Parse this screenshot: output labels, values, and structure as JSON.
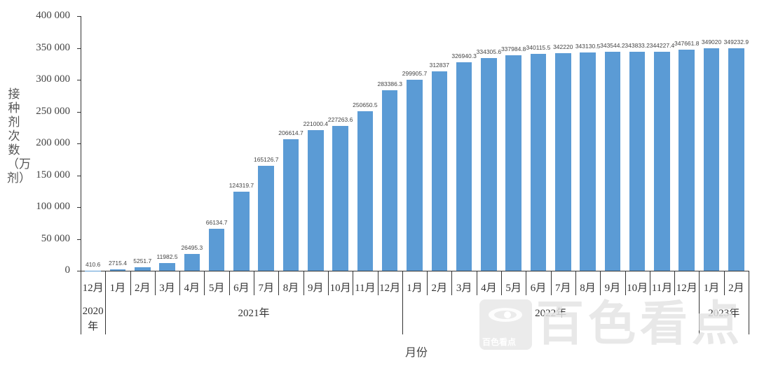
{
  "chart_data": {
    "type": "bar",
    "title": "",
    "xlabel": "月份",
    "ylabel": "接种剂次数（万剂）",
    "ylim": [
      0,
      400000
    ],
    "yticks": [
      "400 000",
      "350 000",
      "300 000",
      "250 000",
      "200 000",
      "150 000",
      "100 000",
      "50 000",
      "0"
    ],
    "ytick_values": [
      400000,
      350000,
      300000,
      250000,
      200000,
      150000,
      100000,
      50000,
      0
    ],
    "grid": false,
    "legend": null,
    "bar_color": "#5b9bd5",
    "categories": [
      "12月",
      "1月",
      "2月",
      "3月",
      "4月",
      "5月",
      "6月",
      "7月",
      "8月",
      "9月",
      "10月",
      "11月",
      "12月",
      "1月",
      "2月",
      "3月",
      "4月",
      "5月",
      "6月",
      "7月",
      "8月",
      "9月",
      "10月",
      "11月",
      "12月",
      "1月",
      "2月"
    ],
    "values": [
      410.6,
      2715.4,
      5251.7,
      11982.5,
      26495.3,
      66134.7,
      124319.7,
      165126.7,
      206614.7,
      221000.4,
      227263.6,
      250650.5,
      283386.3,
      299905.7,
      312837,
      326940.3,
      334305.6,
      337984.8,
      340115.5,
      342220,
      343130.5,
      343544.2,
      343833.2,
      344227.4,
      347661.8,
      349020,
      349232.9
    ],
    "value_labels": [
      "410.6",
      "2715.4",
      "5251.7",
      "11982.5",
      "26495.3",
      "66134.7",
      "124319.7",
      "165126.7",
      "206614.7",
      "221000.4",
      "227263.6",
      "250650.5",
      "283386.3",
      "299905.7",
      "312837",
      "326940.3",
      "334305.6",
      "337984.8",
      "340115.5",
      "342220",
      "343130.5",
      "343544.2",
      "343833.2",
      "344227.4",
      "347661.8",
      "349020",
      "349232.9"
    ],
    "year_groups": [
      {
        "label": "2020年",
        "start": 0,
        "count": 1
      },
      {
        "label": "2021年",
        "start": 1,
        "count": 12
      },
      {
        "label": "2022年",
        "start": 13,
        "count": 12
      },
      {
        "label": "2023年",
        "start": 25,
        "count": 2
      }
    ]
  },
  "watermark": {
    "small_text": "百色看点",
    "big_text": "百色看点"
  }
}
